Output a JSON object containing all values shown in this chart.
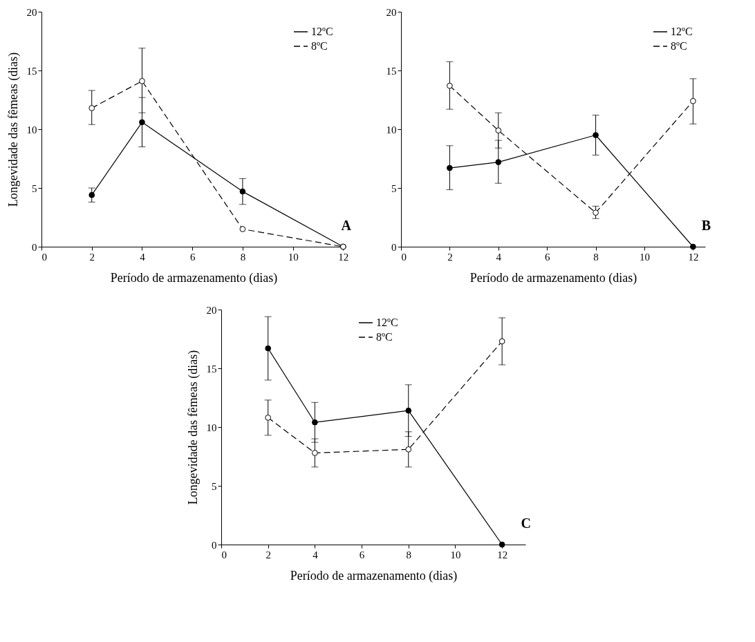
{
  "chart_data": [
    {
      "type": "line",
      "xlabel": "Período de armazenamento (dias)",
      "ylabel": "Longevidade das fêmeas (dias)",
      "xlim": [
        0,
        12.1
      ],
      "xticks": [
        0,
        2,
        4,
        6,
        8,
        10,
        12
      ],
      "ylim": [
        0,
        20
      ],
      "yticks": [
        0,
        5,
        10,
        15,
        20
      ],
      "grid": false,
      "legend": "top right",
      "marker": "circle",
      "annotations": [
        "A"
      ],
      "x": [
        2,
        4,
        8,
        12
      ],
      "series": [
        {
          "name": "12ºC",
          "color": "#000000",
          "line_style": "solid",
          "values": [
            4.4,
            10.6,
            4.7,
            0
          ],
          "errors": [
            [
              3.8,
              5.0
            ],
            [
              8.5,
              12.7
            ],
            [
              3.6,
              5.8
            ],
            null
          ]
        },
        {
          "name": "8ºC",
          "color": "#000000",
          "line_style": "dashed",
          "values": [
            11.8,
            14.1,
            1.5,
            0
          ],
          "errors": [
            [
              10.4,
              13.3
            ],
            [
              11.4,
              16.9
            ],
            null,
            null
          ]
        }
      ]
    },
    {
      "type": "line",
      "xlabel": "Período de armazenamento (dias)",
      "xlim": [
        0,
        12.5
      ],
      "xticks": [
        0,
        2,
        4,
        6,
        8,
        10,
        12
      ],
      "ylim": [
        0,
        20
      ],
      "yticks": [
        0,
        5,
        10,
        15,
        20
      ],
      "grid": false,
      "legend": "top right",
      "marker": "circle",
      "annotations": [
        "B"
      ],
      "x": [
        2,
        4,
        8,
        12
      ],
      "series": [
        {
          "name": "12ºC",
          "color": "#000000",
          "line_style": "solid",
          "values": [
            6.7,
            7.2,
            9.5,
            0
          ],
          "errors": [
            [
              4.85,
              8.6
            ],
            [
              5.4,
              9.05
            ],
            [
              7.8,
              11.2
            ],
            null
          ]
        },
        {
          "name": "8ºC",
          "color": "#000000",
          "line_style": "dashed",
          "values": [
            13.7,
            9.9,
            2.9,
            12.4
          ],
          "errors": [
            [
              11.7,
              15.75
            ],
            [
              8.4,
              11.4
            ],
            [
              2.4,
              3.45
            ],
            [
              10.45,
              14.3
            ]
          ]
        }
      ]
    },
    {
      "type": "line",
      "xlabel": "Período de armazenamento (dias)",
      "ylabel": "Longevidade das fêmeas (dias)",
      "xlim": [
        0,
        13
      ],
      "xticks": [
        0,
        2,
        4,
        6,
        8,
        10,
        12
      ],
      "ylim": [
        0,
        20
      ],
      "yticks": [
        0,
        5,
        10,
        15,
        20
      ],
      "grid": false,
      "legend": "top",
      "marker": "circle",
      "annotations": [
        "C"
      ],
      "x": [
        2,
        4,
        8,
        12
      ],
      "series": [
        {
          "name": "12ºC",
          "color": "#000000",
          "line_style": "solid",
          "values": [
            16.7,
            10.4,
            11.4,
            0
          ],
          "errors": [
            [
              14.0,
              19.4
            ],
            [
              8.7,
              12.1
            ],
            [
              9.2,
              13.6
            ],
            null
          ]
        },
        {
          "name": "8ºC",
          "color": "#000000",
          "line_style": "dashed",
          "values": [
            10.8,
            7.8,
            8.1,
            17.3
          ],
          "errors": [
            [
              9.3,
              12.3
            ],
            [
              6.6,
              9.0
            ],
            [
              6.6,
              9.6
            ],
            [
              15.3,
              19.3
            ]
          ]
        }
      ]
    }
  ]
}
